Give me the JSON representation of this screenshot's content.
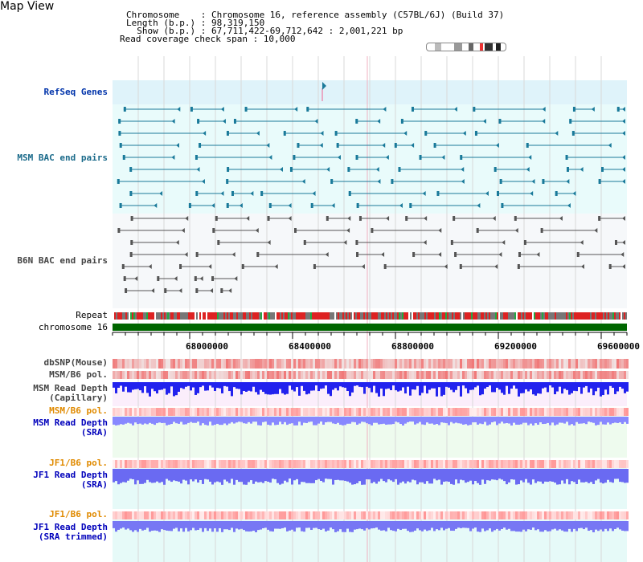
{
  "map_view": {
    "title": "Map View"
  },
  "header": {
    "line1": "Chromosome    : Chromosome 16, reference assembly (C57BL/6J) (Build 37)",
    "line2": "Length (b.p.) : 98,319,150",
    "line3": "  Show (b.p.) : 67,711,422-69,712,642 : 2,001,221 bp",
    "line4": "Read coverage check span : 10,000"
  },
  "tracks": {
    "refseq": "RefSeq Genes",
    "msm_bac": "MSM BAC end pairs",
    "b6n_bac": "B6N BAC end pairs",
    "repeat": "Repeat",
    "chromosome": "chromosome 16",
    "dbsnp": "dbSNP(Mouse)",
    "msm_b6_pol_1": "MSM/B6 pol.",
    "msm_read_depth_cap_1": "MSM Read Depth",
    "msm_read_depth_cap_2": "(Capillary)",
    "msm_b6_pol_2": "MSM/B6 pol.",
    "msm_read_depth_sra_1": "MSM Read Depth",
    "msm_read_depth_sra_2": "(SRA)",
    "jf1_b6_pol_1": "JF1/B6 pol.",
    "jf1_read_depth_sra_1": "JF1 Read Depth",
    "jf1_read_depth_sra_2": "(SRA)",
    "jf1_b6_pol_2": "JF1/B6 pol.",
    "jf1_read_depth_trim_1": "JF1 Read Depth",
    "jf1_read_depth_trim_2": "(SRA trimmed)"
  },
  "axis": {
    "ticks": [
      "68000000",
      "68400000",
      "68800000",
      "69200000",
      "69600000"
    ]
  },
  "colors": {
    "refseq_bg": "#dff3fa",
    "bac_bg": "#e9fbfb",
    "teal_feature": "#1a7a9a",
    "gray_feature": "#555555",
    "chromosome": "#006600",
    "pol_red": "#ee3333",
    "depth_blue": "#3333ee"
  }
}
